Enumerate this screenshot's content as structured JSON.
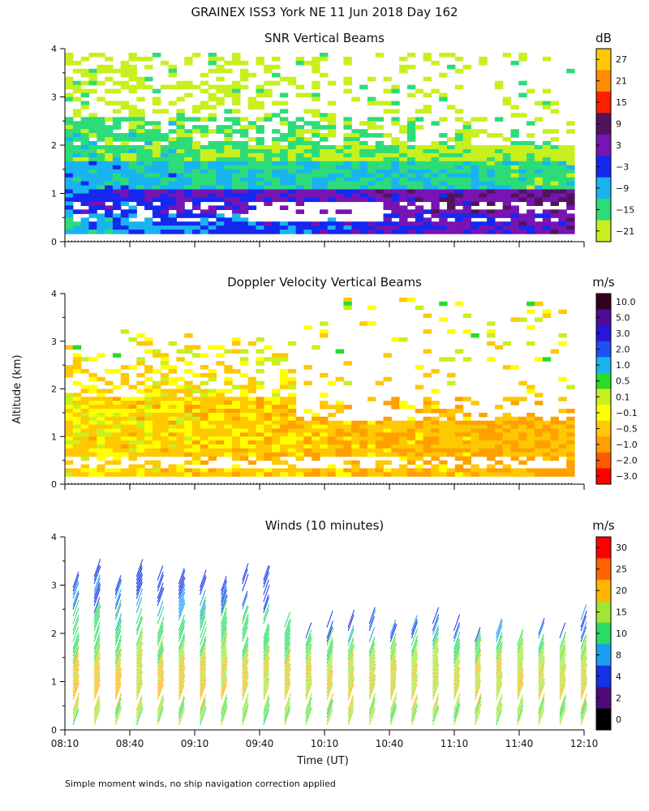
{
  "page": {
    "title": "GRAINEX ISS3 York NE  11 Jun 2018 Day 162",
    "ylabel": "Altitude (km)",
    "xlabel": "Time (UT)",
    "footnote": "Simple moment winds, no ship navigation correction applied"
  },
  "chart_data": [
    {
      "type": "heatmap",
      "title": "SNR Vertical Beams",
      "ylim": [
        0,
        4
      ],
      "yticks": [
        "0",
        "1",
        "2",
        "3",
        "4"
      ],
      "time_range": [
        "08:10",
        "12:10"
      ],
      "colorbar": {
        "unit": "dB",
        "labels": [
          "27",
          "21",
          "15",
          "9",
          "3",
          "−3",
          "−9",
          "−15",
          "−21"
        ],
        "colors": [
          "#ffc800",
          "#ff8c00",
          "#ff1e00",
          "#50145a",
          "#7814b4",
          "#1428f0",
          "#19b4f0",
          "#2ddc78",
          "#c8f01e"
        ]
      },
      "layers": [
        {
          "bottom": 0.15,
          "top": 0.6,
          "left_value": -9,
          "right_value": 3
        },
        {
          "bottom": 0.6,
          "top": 1.1,
          "left_value": -3,
          "right_value": 6
        },
        {
          "bottom": 1.1,
          "top": 1.7,
          "left_value": -9,
          "right_value": -15
        },
        {
          "bottom": 1.7,
          "top": 2.6,
          "left_value": -15,
          "right_value": -21
        },
        {
          "bottom": 2.6,
          "top": 3.9,
          "left_value": -21,
          "right_value": -21
        }
      ]
    },
    {
      "type": "heatmap",
      "title": "Doppler Velocity Vertical Beams",
      "ylim": [
        0,
        4
      ],
      "yticks": [
        "0",
        "1",
        "2",
        "3",
        "4"
      ],
      "time_range": [
        "08:10",
        "12:10"
      ],
      "colorbar": {
        "unit": "m/s",
        "labels": [
          "10.0",
          "5.0",
          "3.0",
          "2.0",
          "1.0",
          "0.5",
          "0.1",
          "−0.1",
          "−0.5",
          "−1.0",
          "−2.0",
          "−3.0"
        ],
        "colors": [
          "#32001e",
          "#500a96",
          "#2814dc",
          "#1e50f0",
          "#19b4f0",
          "#28dc28",
          "#c8f01e",
          "#ffff00",
          "#ffc800",
          "#ffa000",
          "#ff5a00",
          "#ff0000"
        ]
      },
      "layers": [
        {
          "bottom": 0.15,
          "top": 1.85,
          "left_value": -0.3,
          "right_value": -0.8
        },
        {
          "bottom": 1.85,
          "top": 2.5,
          "left_value": -0.3,
          "right_value": -0.3
        },
        {
          "bottom": 2.5,
          "top": 3.9,
          "left_value": -0.1,
          "right_value": -0.1
        }
      ]
    },
    {
      "type": "barbs",
      "title": "Winds (10 minutes)",
      "ylim": [
        0,
        4
      ],
      "yticks": [
        "0",
        "1",
        "2",
        "3",
        "4"
      ],
      "xticks": [
        "08:10",
        "08:40",
        "09:10",
        "09:40",
        "10:10",
        "10:40",
        "11:10",
        "11:40",
        "12:10"
      ],
      "colorbar": {
        "unit": "m/s",
        "labels": [
          "30",
          "25",
          "20",
          "15",
          "10",
          "8",
          "4",
          "2",
          "0"
        ],
        "colors": [
          "#ff0000",
          "#ff6400",
          "#ffb400",
          "#a0e632",
          "#28dc64",
          "#19a0f0",
          "#1432e6",
          "#500a78",
          "#000000"
        ]
      },
      "profiles": [
        {
          "speed_low": 15,
          "speed_mid": 20,
          "speed_high": 10
        },
        {
          "speed_low": 12,
          "speed_mid": 20,
          "speed_high": 8
        }
      ]
    }
  ]
}
